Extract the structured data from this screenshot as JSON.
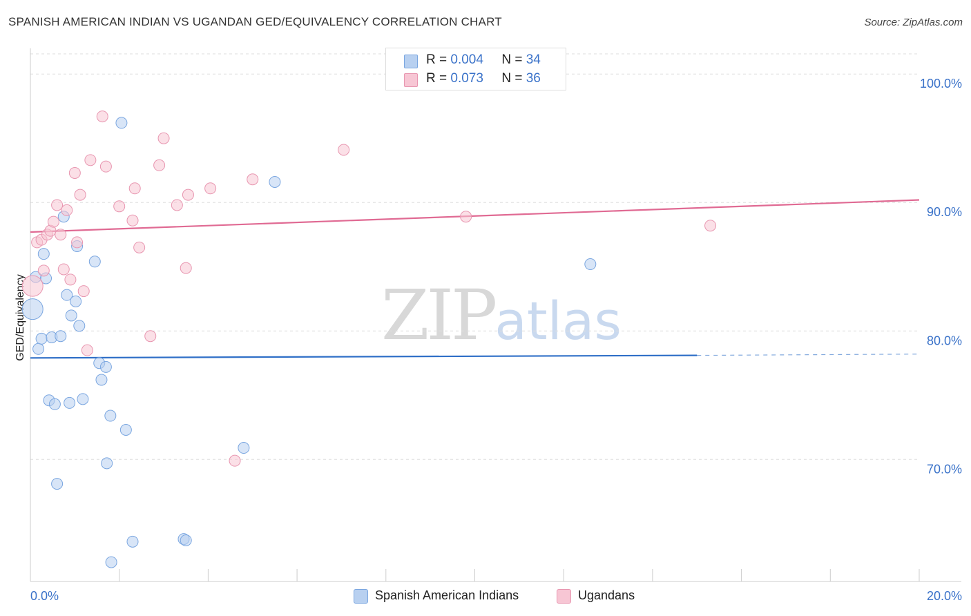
{
  "header": {
    "title": "SPANISH AMERICAN INDIAN VS UGANDAN GED/EQUIVALENCY CORRELATION CHART",
    "source": "Source: ZipAtlas.com"
  },
  "watermark": {
    "zip": "ZIP",
    "atlas": "atlas"
  },
  "legend": {
    "rows": [
      {
        "r_label": "R =",
        "r_value": "0.004",
        "n_label": "N =",
        "n_value": "34"
      },
      {
        "r_label": "R =",
        "r_value": "0.073",
        "n_label": "N =",
        "n_value": "36"
      }
    ]
  },
  "bottom_legend": {
    "items": [
      {
        "label": "Spanish American Indians"
      },
      {
        "label": "Ugandans"
      }
    ]
  },
  "colors": {
    "blue_fill": "#b8d0f0",
    "blue_stroke": "#7aa6e0",
    "blue_line": "#2f6fc7",
    "pink_fill": "#f7c6d4",
    "pink_stroke": "#e896b0",
    "pink_line": "#e06a93",
    "grid": "#dddddd",
    "tick_text": "#3a72c9"
  },
  "chart_data": {
    "type": "scatter",
    "title": "SPANISH AMERICAN INDIAN VS UGANDAN GED/EQUIVALENCY CORRELATION CHART",
    "xlabel": "",
    "ylabel": "GED/Equivalency",
    "xlim": [
      0,
      20
    ],
    "ylim": [
      60.5,
      102
    ],
    "x_tick_labels": [
      "0.0%",
      "20.0%"
    ],
    "y_ticks": [
      {
        "value": 70,
        "label": "70.0%"
      },
      {
        "value": 80,
        "label": "80.0%"
      },
      {
        "value": 90,
        "label": "90.0%"
      },
      {
        "value": 100,
        "label": "100.0%"
      }
    ],
    "series": [
      {
        "name": "Spanish American Indians",
        "color": "blue",
        "r": 0.004,
        "n": 34,
        "trend": {
          "x0": 0,
          "y0": 77.9,
          "x1": 15,
          "y1": 78.1,
          "dash_to_x": 20,
          "dash_to_y": 78.2
        },
        "points": [
          {
            "x": 0.05,
            "y": 81.7,
            "big": true
          },
          {
            "x": 0.12,
            "y": 84.2
          },
          {
            "x": 0.18,
            "y": 78.6
          },
          {
            "x": 0.25,
            "y": 79.4
          },
          {
            "x": 0.3,
            "y": 86.0
          },
          {
            "x": 0.35,
            "y": 84.1
          },
          {
            "x": 0.42,
            "y": 74.6
          },
          {
            "x": 0.48,
            "y": 79.5
          },
          {
            "x": 0.55,
            "y": 74.3
          },
          {
            "x": 0.6,
            "y": 68.1
          },
          {
            "x": 0.68,
            "y": 79.6
          },
          {
            "x": 0.75,
            "y": 88.9
          },
          {
            "x": 0.82,
            "y": 82.8
          },
          {
            "x": 0.88,
            "y": 74.4
          },
          {
            "x": 0.92,
            "y": 81.2
          },
          {
            "x": 1.02,
            "y": 82.3
          },
          {
            "x": 1.05,
            "y": 86.6
          },
          {
            "x": 1.1,
            "y": 80.4
          },
          {
            "x": 1.18,
            "y": 74.7
          },
          {
            "x": 1.45,
            "y": 85.4
          },
          {
            "x": 1.55,
            "y": 77.5
          },
          {
            "x": 1.6,
            "y": 76.2
          },
          {
            "x": 1.7,
            "y": 77.2
          },
          {
            "x": 1.72,
            "y": 69.7
          },
          {
            "x": 1.8,
            "y": 73.4
          },
          {
            "x": 1.82,
            "y": 62.0
          },
          {
            "x": 2.05,
            "y": 96.2
          },
          {
            "x": 2.15,
            "y": 72.3
          },
          {
            "x": 2.3,
            "y": 63.6
          },
          {
            "x": 3.45,
            "y": 63.8
          },
          {
            "x": 3.5,
            "y": 63.7
          },
          {
            "x": 4.8,
            "y": 70.9
          },
          {
            "x": 5.5,
            "y": 91.6
          },
          {
            "x": 12.6,
            "y": 85.2
          }
        ]
      },
      {
        "name": "Ugandans",
        "color": "pink",
        "r": 0.073,
        "n": 36,
        "trend": {
          "x0": 0,
          "y0": 87.7,
          "x1": 20,
          "y1": 90.2
        },
        "points": [
          {
            "x": 0.05,
            "y": 83.5,
            "big": true
          },
          {
            "x": 0.15,
            "y": 86.9
          },
          {
            "x": 0.25,
            "y": 87.1
          },
          {
            "x": 0.3,
            "y": 84.7
          },
          {
            "x": 0.38,
            "y": 87.5
          },
          {
            "x": 0.45,
            "y": 87.8
          },
          {
            "x": 0.52,
            "y": 88.5
          },
          {
            "x": 0.6,
            "y": 89.8
          },
          {
            "x": 0.68,
            "y": 87.5
          },
          {
            "x": 0.75,
            "y": 84.8
          },
          {
            "x": 0.82,
            "y": 89.4
          },
          {
            "x": 0.9,
            "y": 84.0
          },
          {
            "x": 1.0,
            "y": 92.3
          },
          {
            "x": 1.05,
            "y": 86.9
          },
          {
            "x": 1.12,
            "y": 90.6
          },
          {
            "x": 1.2,
            "y": 83.1
          },
          {
            "x": 1.28,
            "y": 78.5
          },
          {
            "x": 1.35,
            "y": 93.3
          },
          {
            "x": 1.62,
            "y": 96.7
          },
          {
            "x": 1.7,
            "y": 92.8
          },
          {
            "x": 2.0,
            "y": 89.7
          },
          {
            "x": 2.3,
            "y": 88.6
          },
          {
            "x": 2.35,
            "y": 91.1
          },
          {
            "x": 2.45,
            "y": 86.5
          },
          {
            "x": 2.7,
            "y": 79.6
          },
          {
            "x": 2.9,
            "y": 92.9
          },
          {
            "x": 3.0,
            "y": 95.0
          },
          {
            "x": 3.3,
            "y": 89.8
          },
          {
            "x": 3.5,
            "y": 84.9
          },
          {
            "x": 3.55,
            "y": 90.6
          },
          {
            "x": 4.05,
            "y": 91.1
          },
          {
            "x": 4.6,
            "y": 69.9
          },
          {
            "x": 5.0,
            "y": 91.8
          },
          {
            "x": 7.05,
            "y": 94.1
          },
          {
            "x": 9.8,
            "y": 88.9
          },
          {
            "x": 15.3,
            "y": 88.2
          }
        ]
      }
    ]
  }
}
